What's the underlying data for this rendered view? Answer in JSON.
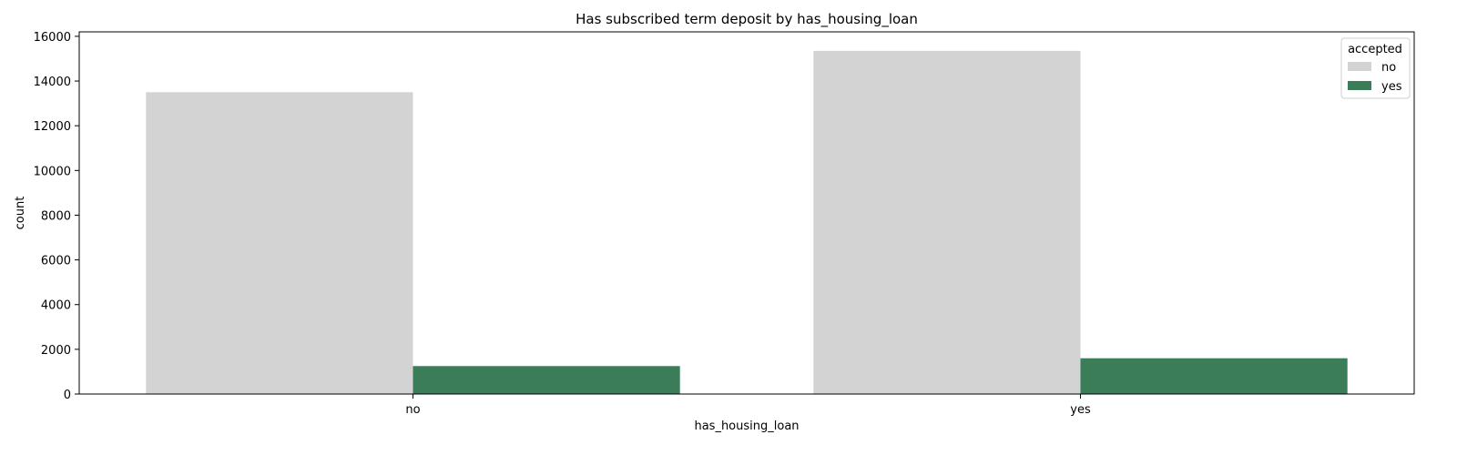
{
  "chart_data": {
    "type": "bar",
    "title": "Has subscribed term deposit by has_housing_loan",
    "xlabel": "has_housing_loan",
    "ylabel": "count",
    "categories": [
      "no",
      "yes"
    ],
    "series": [
      {
        "name": "no",
        "color": "#d3d3d3",
        "values": [
          13500,
          15350
        ]
      },
      {
        "name": "yes",
        "color": "#3a7d58",
        "values": [
          1250,
          1600
        ]
      }
    ],
    "ylim": [
      0,
      16200
    ],
    "yticks": [
      0,
      2000,
      4000,
      6000,
      8000,
      10000,
      12000,
      14000,
      16000
    ],
    "grid": false,
    "legend": {
      "title": "accepted",
      "position": "top-right"
    }
  }
}
